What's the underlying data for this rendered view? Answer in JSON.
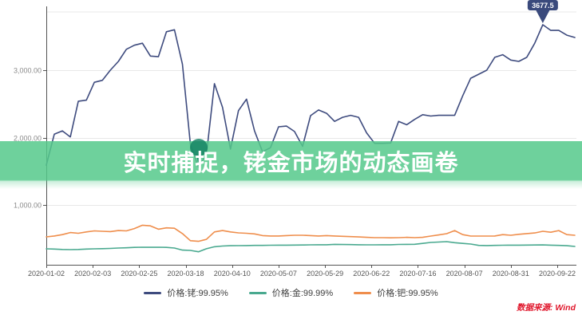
{
  "title_overlay": "实时捕捉，铑金市场的动态画卷",
  "source_note": "数据来源: Wind",
  "colors": {
    "banner_green": "#55c98b",
    "rhodium_navy": "#3e4b7e",
    "gold_teal": "#49a98f",
    "palladium_orange": "#ef8e4c",
    "source_red": "#e0162b",
    "min_marker_teal": "#0f7e60",
    "grid_gray": "#e8e8e8",
    "axis_gray": "#555555"
  },
  "chart_data": {
    "type": "line",
    "title": "实时捕捉，铑金市场的动态画卷",
    "xlabel": "",
    "ylabel": "",
    "x_tick_labels": [
      "2020-01-02",
      "2020-02-03",
      "2020-02-25",
      "2020-03-18",
      "2020-04-10",
      "2020-05-07",
      "2020-05-29",
      "2020-06-22",
      "2020-07-16",
      "2020-08-07",
      "2020-08-31",
      "2020-09-22"
    ],
    "y_tick_labels": [
      "3,000.00",
      "2,000.00",
      "1,000.00"
    ],
    "y_tick_values": [
      3000,
      2000,
      1000
    ],
    "ylim": [
      113,
      3875
    ],
    "grid": true,
    "legend_position": "bottom",
    "series": [
      {
        "name": "价格:铑:99.95%",
        "color": "#3e4b7e",
        "values": [
          1590,
          2050,
          2100,
          2010,
          2540,
          2555,
          2820,
          2850,
          3000,
          3130,
          3310,
          3370,
          3400,
          3210,
          3200,
          3570,
          3600,
          3090,
          1900,
          1560,
          1750,
          2800,
          2450,
          1830,
          2400,
          2570,
          2100,
          1790,
          1850,
          2160,
          2170,
          2090,
          1870,
          2325,
          2410,
          2360,
          2240,
          2300,
          2330,
          2300,
          2070,
          1915,
          1915,
          1920,
          2240,
          2190,
          2270,
          2340,
          2320,
          2330,
          2330,
          2330,
          2620,
          2880,
          2940,
          3000,
          3190,
          3230,
          3150,
          3130,
          3190,
          3400,
          3674,
          3590,
          3590,
          3520,
          3485
        ]
      },
      {
        "name": "价格:金:99.99%",
        "color": "#49a98f",
        "values": [
          349,
          346,
          340,
          337,
          340,
          345,
          349,
          352,
          355,
          361,
          365,
          370,
          373,
          372,
          373,
          370,
          361,
          330,
          326,
          305,
          350,
          380,
          390,
          395,
          397,
          398,
          400,
          400,
          402,
          403,
          404,
          405,
          406,
          408,
          409,
          410,
          415,
          413,
          412,
          410,
          408,
          408,
          409,
          410,
          414,
          415,
          417,
          430,
          444,
          450,
          456,
          440,
          430,
          420,
          400,
          398,
          400,
          402,
          403,
          404,
          405,
          406,
          407,
          404,
          400,
          395,
          385
        ]
      },
      {
        "name": "价格:钯:99.95%",
        "color": "#ef8e4c",
        "values": [
          527,
          540,
          560,
          590,
          580,
          600,
          615,
          610,
          605,
          620,
          615,
          650,
          700,
          690,
          640,
          660,
          655,
          575,
          470,
          460,
          490,
          600,
          620,
          600,
          586,
          580,
          570,
          545,
          540,
          540,
          545,
          550,
          550,
          545,
          540,
          545,
          540,
          535,
          530,
          525,
          520,
          515,
          515,
          512,
          515,
          520,
          515,
          520,
          538,
          555,
          574,
          620,
          560,
          538,
          538,
          538,
          540,
          560,
          550,
          565,
          575,
          585,
          610,
          595,
          620,
          560,
          550
        ]
      }
    ],
    "max_marker": {
      "series": "价格:铑:99.95%",
      "label": "3677.5",
      "value": 3677.5
    },
    "min_marker": {
      "series": "价格:铑:99.95%",
      "label": "",
      "value": 1560
    }
  }
}
